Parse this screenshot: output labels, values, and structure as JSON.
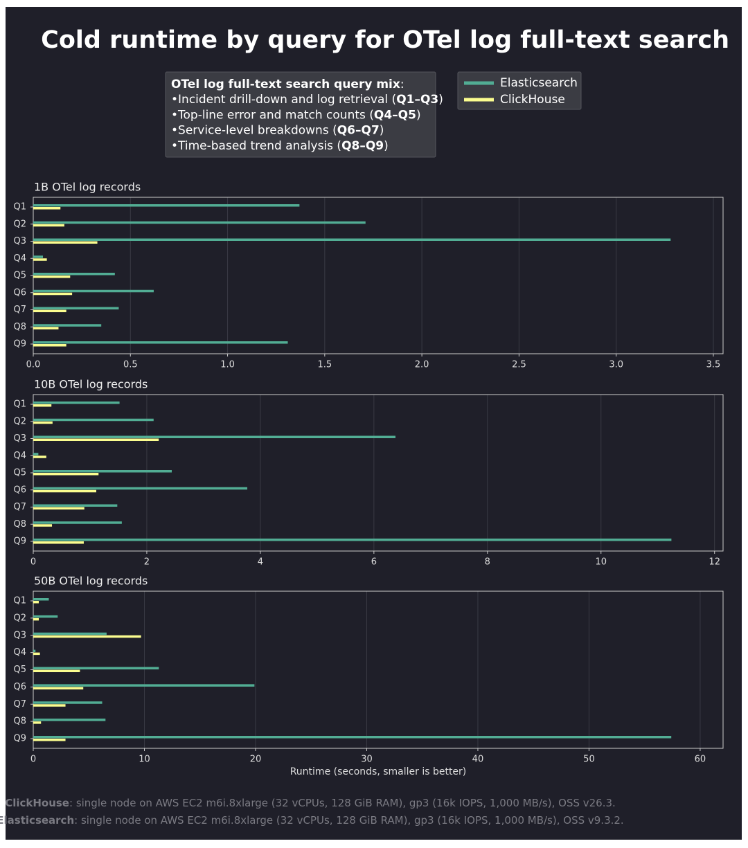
{
  "title": "Cold runtime by query for OTel log full-text search",
  "query_mix": {
    "heading": "OTel log full-text search query mix",
    "heading_end": ":",
    "items": [
      {
        "text": "•Incident drill-down and log retrieval (",
        "bold": "Q1–Q3",
        "end": ")"
      },
      {
        "text": "•Top-line error and match counts (",
        "bold": "Q4–Q5",
        "end": ")"
      },
      {
        "text": "•Service-level breakdowns (",
        "bold": "Q6–Q7",
        "end": ")"
      },
      {
        "text": "•Time-based trend analysis (",
        "bold": "Q8–Q9",
        "end": ")"
      }
    ]
  },
  "notes": [
    {
      "bold": "ClickHouse",
      "text": ": single node on AWS EC2 m6i.8xlarge (32 vCPUs, 128 GiB RAM), gp3 (16k IOPS, 1,000 MB/s), OSS v26.3."
    },
    {
      "bold": "Elasticsearch",
      "text": ": single node on AWS EC2 m6i.8xlarge (32 vCPUs, 128 GiB RAM), gp3 (16k IOPS, 1,000 MB/s), OSS v9.3.2."
    }
  ],
  "chart_data": [
    {
      "type": "barh",
      "title": "1B OTel log records",
      "categories": [
        "Q1",
        "Q2",
        "Q3",
        "Q4",
        "Q5",
        "Q6",
        "Q7",
        "Q8",
        "Q9"
      ],
      "series": [
        {
          "name": "Elasticsearch",
          "color": "#52ad94",
          "values": [
            1.37,
            1.71,
            3.28,
            0.05,
            0.42,
            0.62,
            0.44,
            0.35,
            1.31
          ]
        },
        {
          "name": "ClickHouse",
          "color": "#fbfd8f",
          "values": [
            0.14,
            0.16,
            0.33,
            0.07,
            0.19,
            0.2,
            0.17,
            0.13,
            0.17
          ]
        }
      ],
      "xlim": [
        0,
        3.55
      ],
      "xticks": [
        {
          "value": 0,
          "label": "0.0"
        },
        0.5,
        {
          "value": 1,
          "label": "1.0"
        },
        1.5,
        {
          "value": 2,
          "label": "2.0"
        },
        2.5,
        {
          "value": 3,
          "label": "3.0"
        },
        3.5
      ],
      "grid": true
    },
    {
      "type": "barh",
      "title": "10B OTel log records",
      "categories": [
        "Q1",
        "Q2",
        "Q3",
        "Q4",
        "Q5",
        "Q6",
        "Q7",
        "Q8",
        "Q9"
      ],
      "series": [
        {
          "name": "Elasticsearch",
          "color": "#52ad94",
          "values": [
            1.52,
            2.12,
            6.38,
            0.09,
            2.44,
            3.77,
            1.48,
            1.56,
            11.24
          ]
        },
        {
          "name": "ClickHouse",
          "color": "#fbfd8f",
          "values": [
            0.32,
            0.34,
            2.21,
            0.23,
            1.15,
            1.11,
            0.9,
            0.33,
            0.89
          ]
        }
      ],
      "xlim": [
        0,
        12.15
      ],
      "xticks": [
        0,
        2,
        4,
        6,
        8,
        10,
        12
      ],
      "grid": true
    },
    {
      "type": "barh",
      "title": "50B OTel log records",
      "xlabel": "Runtime (seconds, smaller is better)",
      "categories": [
        "Q1",
        "Q2",
        "Q3",
        "Q4",
        "Q5",
        "Q6",
        "Q7",
        "Q8",
        "Q9"
      ],
      "series": [
        {
          "name": "Elasticsearch",
          "color": "#52ad94",
          "values": [
            1.4,
            2.2,
            6.6,
            0.2,
            11.3,
            19.9,
            6.2,
            6.5,
            57.4
          ]
        },
        {
          "name": "ClickHouse",
          "color": "#fbfd8f",
          "values": [
            0.5,
            0.5,
            9.7,
            0.6,
            4.2,
            4.5,
            2.9,
            0.7,
            2.9
          ]
        }
      ],
      "xlim": [
        0,
        62.06
      ],
      "xticks": [
        0,
        10,
        20,
        30,
        40,
        50,
        60
      ],
      "grid": true
    }
  ]
}
